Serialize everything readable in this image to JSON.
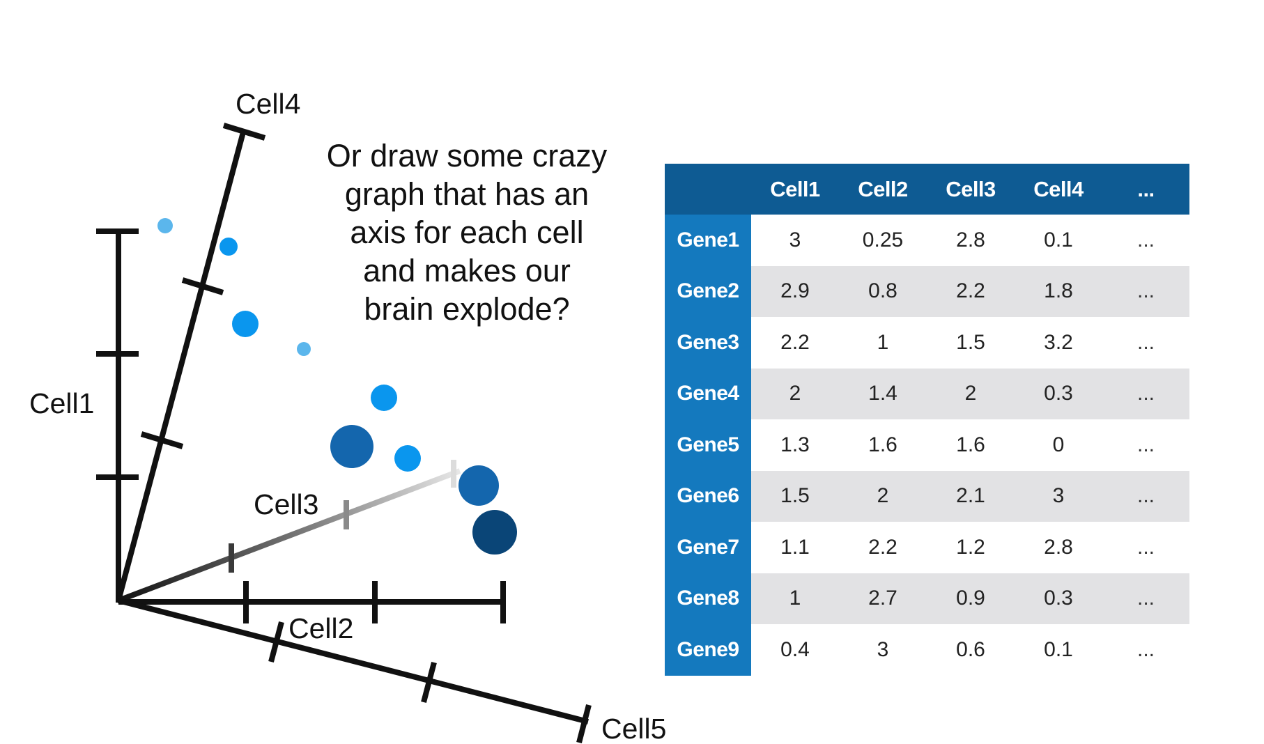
{
  "diagram": {
    "axes": {
      "cell1": "Cell1",
      "cell2": "Cell2",
      "cell3": "Cell3",
      "cell4": "Cell4",
      "cell5": "Cell5"
    },
    "question_lines": [
      "Or draw some crazy",
      "graph that has an",
      "axis for each cell",
      "and makes our",
      "brain explode?"
    ]
  },
  "colors": {
    "axis": "#111111",
    "table_header": "#0e5b93",
    "gene_label": "#1479be",
    "row_shade": "#e2e2e4",
    "dot_light": "#5bb6ec",
    "dot_bright": "#0a96ee",
    "dot_mid": "#1466ad",
    "dot_dark": "#0a4577"
  },
  "table": {
    "corner": "",
    "columns": [
      "Cell1",
      "Cell2",
      "Cell3",
      "Cell4",
      "..."
    ],
    "rows": [
      {
        "gene": "Gene1",
        "values": [
          "3",
          "0.25",
          "2.8",
          "0.1",
          "..."
        ]
      },
      {
        "gene": "Gene2",
        "values": [
          "2.9",
          "0.8",
          "2.2",
          "1.8",
          "..."
        ]
      },
      {
        "gene": "Gene3",
        "values": [
          "2.2",
          "1",
          "1.5",
          "3.2",
          "..."
        ]
      },
      {
        "gene": "Gene4",
        "values": [
          "2",
          "1.4",
          "2",
          "0.3",
          "..."
        ]
      },
      {
        "gene": "Gene5",
        "values": [
          "1.3",
          "1.6",
          "1.6",
          "0",
          "..."
        ]
      },
      {
        "gene": "Gene6",
        "values": [
          "1.5",
          "2",
          "2.1",
          "3",
          "..."
        ]
      },
      {
        "gene": "Gene7",
        "values": [
          "1.1",
          "2.2",
          "1.2",
          "2.8",
          "..."
        ]
      },
      {
        "gene": "Gene8",
        "values": [
          "1",
          "2.7",
          "0.9",
          "0.3",
          "..."
        ]
      },
      {
        "gene": "Gene9",
        "values": [
          "0.4",
          "3",
          "0.6",
          "0.1",
          "..."
        ]
      }
    ]
  }
}
